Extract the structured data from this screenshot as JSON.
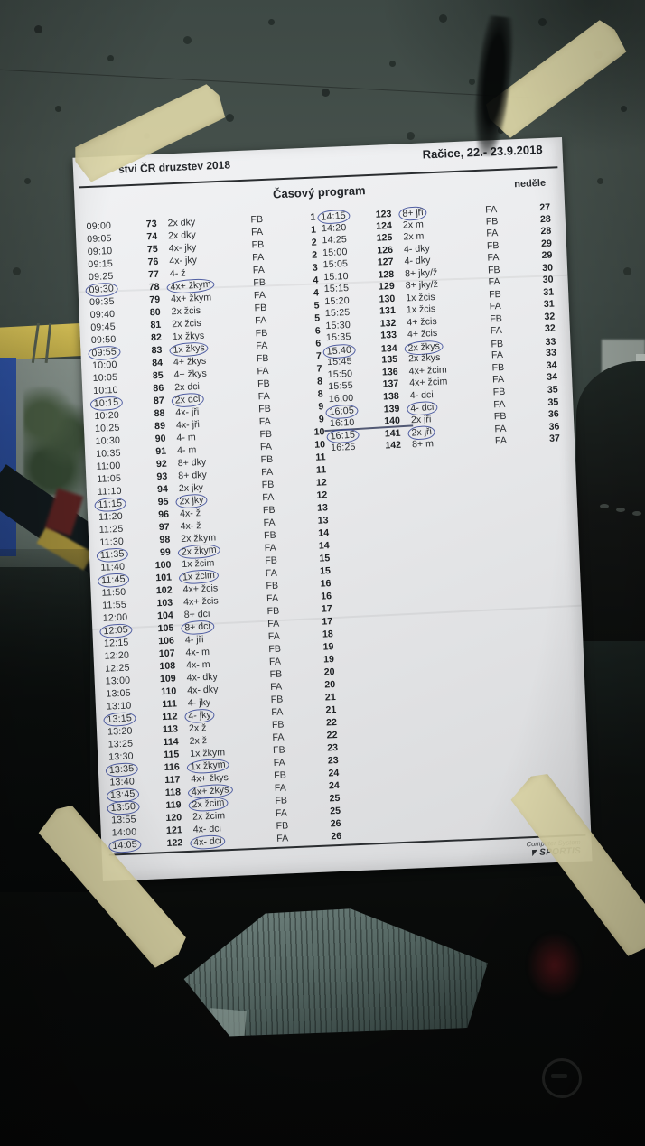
{
  "document": {
    "event_title_visible": "stvi ČR druzstev 2018",
    "venue_date": "Račice,  22.- 23.9.2018",
    "program_title": "Časový program",
    "day_label": "neděle",
    "footer": {
      "line1": "Computer System",
      "line2": "SPORTIS"
    },
    "columns_header_meaning": [
      "time",
      "race_number",
      "boat_class",
      "flight",
      "heat_number"
    ],
    "schedule_left": [
      [
        "09:00",
        "73",
        "2x dky",
        "FB",
        "1",
        0
      ],
      [
        "09:05",
        "74",
        "2x dky",
        "FA",
        "1",
        0
      ],
      [
        "09:10",
        "75",
        "4x- jky",
        "FB",
        "2",
        0
      ],
      [
        "09:15",
        "76",
        "4x- jky",
        "FA",
        "2",
        0
      ],
      [
        "09:25",
        "77",
        "4- ž",
        "FA",
        "3",
        0
      ],
      [
        "09:30",
        "78",
        "4x+ žkym",
        "FB",
        "4",
        1
      ],
      [
        "09:35",
        "79",
        "4x+ žkym",
        "FA",
        "4",
        0
      ],
      [
        "09:40",
        "80",
        "2x žcis",
        "FB",
        "5",
        0
      ],
      [
        "09:45",
        "81",
        "2x žcis",
        "FA",
        "5",
        0
      ],
      [
        "09:50",
        "82",
        "1x žkys",
        "FB",
        "6",
        0
      ],
      [
        "09:55",
        "83",
        "1x žkys",
        "FA",
        "6",
        1
      ],
      [
        "10:00",
        "84",
        "4+ žkys",
        "FB",
        "7",
        0
      ],
      [
        "10:05",
        "85",
        "4+ žkys",
        "FA",
        "7",
        0
      ],
      [
        "10:10",
        "86",
        "2x dci",
        "FB",
        "8",
        0
      ],
      [
        "10:15",
        "87",
        "2x dci",
        "FA",
        "8",
        1
      ],
      [
        "10:20",
        "88",
        "4x- jři",
        "FB",
        "9",
        0
      ],
      [
        "10:25",
        "89",
        "4x- jři",
        "FA",
        "9",
        0
      ],
      [
        "10:30",
        "90",
        "4- m",
        "FB",
        "10",
        0
      ],
      [
        "10:35",
        "91",
        "4- m",
        "FA",
        "10",
        0
      ],
      [
        "11:00",
        "92",
        "8+ dky",
        "FB",
        "11",
        0
      ],
      [
        "11:05",
        "93",
        "8+ dky",
        "FA",
        "11",
        0
      ],
      [
        "11:10",
        "94",
        "2x jky",
        "FB",
        "12",
        0
      ],
      [
        "11:15",
        "95",
        "2x jky",
        "FA",
        "12",
        1
      ],
      [
        "11:20",
        "96",
        "4x- ž",
        "FB",
        "13",
        0
      ],
      [
        "11:25",
        "97",
        "4x- ž",
        "FA",
        "13",
        0
      ],
      [
        "11:30",
        "98",
        "2x žkym",
        "FB",
        "14",
        0
      ],
      [
        "11:35",
        "99",
        "2x žkym",
        "FA",
        "14",
        1
      ],
      [
        "11:40",
        "100",
        "1x žcim",
        "FB",
        "15",
        0
      ],
      [
        "11:45",
        "101",
        "1x žcim",
        "FA",
        "15",
        1
      ],
      [
        "11:50",
        "102",
        "4x+ žcis",
        "FB",
        "16",
        0
      ],
      [
        "11:55",
        "103",
        "4x+ žcis",
        "FA",
        "16",
        0
      ],
      [
        "12:00",
        "104",
        "8+ dci",
        "FB",
        "17",
        0
      ],
      [
        "12:05",
        "105",
        "8+ dci",
        "FA",
        "17",
        1
      ],
      [
        "12:15",
        "106",
        "4- jři",
        "FA",
        "18",
        0
      ],
      [
        "12:20",
        "107",
        "4x- m",
        "FB",
        "19",
        0
      ],
      [
        "12:25",
        "108",
        "4x- m",
        "FA",
        "19",
        0
      ],
      [
        "13:00",
        "109",
        "4x- dky",
        "FB",
        "20",
        0
      ],
      [
        "13:05",
        "110",
        "4x- dky",
        "FA",
        "20",
        0
      ],
      [
        "13:10",
        "111",
        "4- jky",
        "FB",
        "21",
        0
      ],
      [
        "13:15",
        "112",
        "4- jky",
        "FA",
        "21",
        1
      ],
      [
        "13:20",
        "113",
        "2x ž",
        "FB",
        "22",
        0
      ],
      [
        "13:25",
        "114",
        "2x ž",
        "FA",
        "22",
        0
      ],
      [
        "13:30",
        "115",
        "1x žkym",
        "FB",
        "23",
        0
      ],
      [
        "13:35",
        "116",
        "1x žkym",
        "FA",
        "23",
        1
      ],
      [
        "13:40",
        "117",
        "4x+ žkys",
        "FB",
        "24",
        0
      ],
      [
        "13:45",
        "118",
        "4x+ žkys",
        "FA",
        "24",
        1
      ],
      [
        "13:50",
        "119",
        "2x žcim",
        "FB",
        "25",
        1
      ],
      [
        "13:55",
        "120",
        "2x žcim",
        "FA",
        "25",
        0
      ],
      [
        "14:00",
        "121",
        "4x- dci",
        "FB",
        "26",
        0
      ],
      [
        "14:05",
        "122",
        "4x- dci",
        "FA",
        "26",
        1
      ]
    ],
    "schedule_right": [
      [
        "14:15",
        "123",
        "8+ jři",
        "FA",
        "27",
        1
      ],
      [
        "14:20",
        "124",
        "2x m",
        "FB",
        "28",
        0
      ],
      [
        "14:25",
        "125",
        "2x m",
        "FA",
        "28",
        0
      ],
      [
        "15:00",
        "126",
        "4- dky",
        "FB",
        "29",
        0
      ],
      [
        "15:05",
        "127",
        "4- dky",
        "FA",
        "29",
        0
      ],
      [
        "15:10",
        "128",
        "8+ jky/ž",
        "FB",
        "30",
        0
      ],
      [
        "15:15",
        "129",
        "8+ jky/ž",
        "FA",
        "30",
        0
      ],
      [
        "15:20",
        "130",
        "1x žcis",
        "FB",
        "31",
        0
      ],
      [
        "15:25",
        "131",
        "1x žcis",
        "FA",
        "31",
        0
      ],
      [
        "15:30",
        "132",
        "4+ žcis",
        "FB",
        "32",
        0
      ],
      [
        "15:35",
        "133",
        "4+ žcis",
        "FA",
        "32",
        0
      ],
      [
        "15:40",
        "134",
        "2x žkys",
        "FB",
        "33",
        1
      ],
      [
        "15:45",
        "135",
        "2x žkys",
        "FA",
        "33",
        0
      ],
      [
        "15:50",
        "136",
        "4x+ žcim",
        "FB",
        "34",
        0
      ],
      [
        "15:55",
        "137",
        "4x+ žcim",
        "FA",
        "34",
        0
      ],
      [
        "16:00",
        "138",
        "4- dci",
        "FB",
        "35",
        0
      ],
      [
        "16:05",
        "139",
        "4- dci",
        "FA",
        "35",
        1
      ],
      [
        "16:10",
        "140",
        "2x jři",
        "FB",
        "36",
        0
      ],
      [
        "16:15",
        "141",
        "2x jři",
        "FA",
        "36",
        1
      ],
      [
        "16:25",
        "142",
        "8+ m",
        "FA",
        "37",
        0
      ]
    ],
    "pen_circle_note": "rows flagged 1 have blue pen ovals around time and boat class",
    "underlined_row": "141"
  },
  "colors": {
    "glass_top": "#45504b",
    "paper": "#eaebed",
    "tape": "#dcd5a6",
    "ink": "#2b2e31",
    "pen_blue": "#344494",
    "outside_yellow_boom": "#d2bd55",
    "outside_blue_flag": "#2c4f9e",
    "papers_stack": "#556763"
  }
}
